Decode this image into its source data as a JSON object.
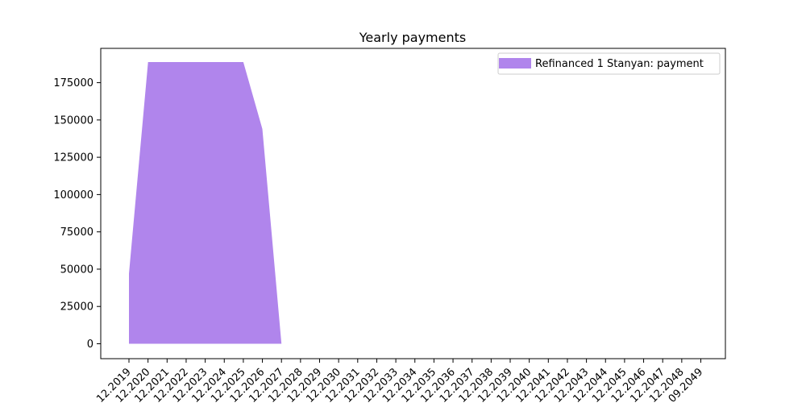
{
  "chart_data": {
    "type": "area",
    "title": "Yearly payments",
    "xlabel": "",
    "ylabel": "",
    "x_tick_labels": [
      "12.2019",
      "12.2020",
      "12.2021",
      "12.2022",
      "12.2023",
      "12.2024",
      "12.2025",
      "12.2026",
      "12.2027",
      "12.2028",
      "12.2029",
      "12.2030",
      "12.2031",
      "12.2032",
      "12.2033",
      "12.2034",
      "12.2035",
      "12.2036",
      "12.2037",
      "12.2038",
      "12.2039",
      "12.2040",
      "12.2041",
      "12.2042",
      "12.2043",
      "12.2044",
      "12.2045",
      "12.2046",
      "12.2047",
      "12.2048",
      "09.2049"
    ],
    "y_ticks": [
      0,
      25000,
      50000,
      75000,
      100000,
      125000,
      150000,
      175000
    ],
    "ylim": [
      -10000,
      198000
    ],
    "grid": false,
    "legend_position": "top-right",
    "series": [
      {
        "name": "Refinanced 1 Stanyan: payment",
        "color": "#b085ec",
        "x": [
          "12.2019",
          "12.2019",
          "12.2020",
          "12.2021",
          "12.2022",
          "12.2023",
          "12.2024",
          "12.2025",
          "12.2026",
          "12.2027"
        ],
        "values": [
          0,
          47000,
          188800,
          188800,
          188800,
          188800,
          188800,
          188800,
          144000,
          0
        ]
      }
    ]
  }
}
